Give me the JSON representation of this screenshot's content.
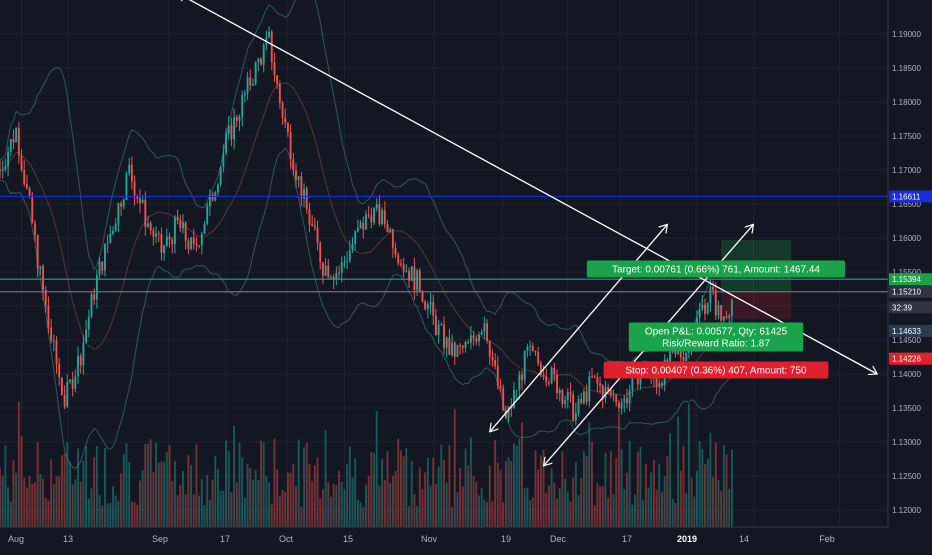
{
  "chart_data": {
    "type": "candlestick",
    "title": "",
    "xlabel": "",
    "ylabel": "",
    "ylim": [
      1.1175,
      1.195
    ],
    "grid": true,
    "x_tick_labels": [
      "Aug",
      "13",
      "Sep",
      "17",
      "Oct",
      "15",
      "Nov",
      "19",
      "Dec",
      "17",
      "2019",
      "14",
      "Feb"
    ],
    "y_tick_labels": [
      "1.19000",
      "1.18500",
      "1.18000",
      "1.17500",
      "1.17000",
      "1.16500",
      "1.16000",
      "1.15500",
      "1.15000",
      "1.14500",
      "1.14000",
      "1.13500",
      "1.13000",
      "1.12500",
      "1.12000"
    ],
    "price_path": [
      [
        0,
        1.17
      ],
      [
        3,
        1.176
      ],
      [
        6,
        1.162
      ],
      [
        9,
        1.147
      ],
      [
        12,
        1.136
      ],
      [
        15,
        1.143
      ],
      [
        18,
        1.154
      ],
      [
        21,
        1.162
      ],
      [
        24,
        1.17
      ],
      [
        27,
        1.163
      ],
      [
        30,
        1.158
      ],
      [
        33,
        1.162
      ],
      [
        36,
        1.158
      ],
      [
        39,
        1.165
      ],
      [
        42,
        1.174
      ],
      [
        45,
        1.18
      ],
      [
        48,
        1.186
      ],
      [
        50,
        1.189
      ],
      [
        52,
        1.18
      ],
      [
        55,
        1.17
      ],
      [
        57,
        1.164
      ],
      [
        60,
        1.156
      ],
      [
        63,
        1.155
      ],
      [
        66,
        1.16
      ],
      [
        69,
        1.164
      ],
      [
        72,
        1.162
      ],
      [
        75,
        1.156
      ],
      [
        78,
        1.153
      ],
      [
        81,
        1.147
      ],
      [
        84,
        1.143
      ],
      [
        87,
        1.144
      ],
      [
        90,
        1.148
      ],
      [
        92,
        1.14
      ],
      [
        94,
        1.133
      ],
      [
        96,
        1.138
      ],
      [
        98,
        1.143
      ],
      [
        101,
        1.141
      ],
      [
        104,
        1.138
      ],
      [
        107,
        1.134
      ],
      [
        110,
        1.139
      ],
      [
        113,
        1.137
      ],
      [
        116,
        1.136
      ],
      [
        119,
        1.141
      ],
      [
        122,
        1.139
      ],
      [
        125,
        1.142
      ],
      [
        128,
        1.144
      ],
      [
        130,
        1.149
      ],
      [
        132,
        1.152
      ],
      [
        134,
        1.148
      ],
      [
        136,
        1.151
      ]
    ],
    "horizontal_lines": [
      {
        "price": 1.16611,
        "color": "#1e2bd8",
        "style": "solid"
      },
      {
        "price": 1.15394,
        "color": "#2e9e8f",
        "style": "solid"
      },
      {
        "price": 1.1521,
        "color": "#6b7280",
        "style": "solid"
      }
    ],
    "trendlines": [
      {
        "from": [
          33,
          1.196
        ],
        "to": [
          163,
          1.14
        ],
        "color": "#ffffff"
      },
      {
        "from": [
          91,
          1.1315
        ],
        "to": [
          124,
          1.162
        ],
        "color": "#ffffff"
      },
      {
        "from": [
          101,
          1.1265
        ],
        "to": [
          140,
          1.162
        ],
        "color": "#ffffff"
      }
    ],
    "position": {
      "type": "long",
      "entry": 1.1521,
      "target_price": 1.15971,
      "stop_price": 1.14803,
      "target_label": "Target: 0.00761 (0.66%) 761, Amount: 1467.44",
      "pnl_label": "Open P&L: 0.00577, Qty: 61425",
      "rr_label": "Risk/Reward Ratio: 1.87",
      "stop_label": "Stop: 0.00407 (0.36%) 407, Amount: 750"
    },
    "price_tags": [
      {
        "label": "1.16611",
        "price": 1.16611,
        "bg": "#1e2bd8",
        "fg": "#ffffff"
      },
      {
        "label": "1.15394",
        "price": 1.15394,
        "bg": "#1aa34a",
        "fg": "#ffffff"
      },
      {
        "label": "1.15210",
        "price": 1.1521,
        "bg": "#2e3440",
        "fg": "#ffffff"
      },
      {
        "label": "32:39",
        "price": 1.1498,
        "bg": "#2e3440",
        "fg": "#ffffff"
      },
      {
        "label": "1.14633",
        "price": 1.14633,
        "bg": "#2a3a50",
        "fg": "#ffffff"
      },
      {
        "label": "1.14226",
        "price": 1.14226,
        "bg": "#e0202e",
        "fg": "#ffffff"
      }
    ]
  },
  "colors": {
    "background": "#131722",
    "grid": "#1e2230",
    "axis_text": "#b2b5be",
    "candle_up": "#26a69a",
    "candle_down": "#ef5350",
    "band": "#4a8c8a",
    "target_label_bg": "#1aa34a",
    "stop_label_bg": "#e0202e"
  }
}
